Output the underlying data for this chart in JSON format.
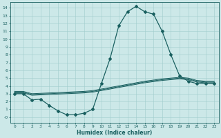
{
  "xlabel": "Humidex (Indice chaleur)",
  "bg_color": "#cce8e8",
  "line_color": "#1a6060",
  "grid_color": "#a0cccc",
  "xlim": [
    -0.5,
    23.5
  ],
  "ylim": [
    -0.7,
    14.7
  ],
  "xticks": [
    0,
    1,
    2,
    3,
    4,
    5,
    6,
    7,
    8,
    9,
    10,
    11,
    12,
    13,
    14,
    15,
    16,
    17,
    18,
    19,
    20,
    21,
    22,
    23
  ],
  "yticks": [
    14,
    13,
    12,
    11,
    10,
    9,
    8,
    7,
    6,
    5,
    4,
    3,
    2,
    1,
    0
  ],
  "ytick_labels": [
    "14",
    "13",
    "12",
    "11",
    "10",
    "9",
    "8",
    "7",
    "6",
    "5",
    "4",
    "3",
    "2",
    "1",
    "-0"
  ],
  "main_x": [
    0,
    1,
    2,
    3,
    4,
    5,
    6,
    7,
    8,
    9,
    10,
    11,
    12,
    13,
    14,
    15,
    16,
    17,
    18,
    19,
    20,
    21,
    22,
    23
  ],
  "main_y": [
    3.0,
    3.0,
    2.2,
    2.3,
    1.5,
    0.8,
    0.3,
    0.3,
    0.5,
    1.0,
    4.3,
    7.5,
    11.7,
    13.5,
    14.2,
    13.5,
    13.2,
    11.0,
    8.0,
    5.3,
    4.6,
    4.3,
    4.3,
    4.3
  ],
  "flat1_x": [
    0,
    1,
    2,
    3,
    4,
    5,
    6,
    7,
    8,
    9,
    10,
    11,
    12,
    13,
    14,
    15,
    16,
    17,
    18,
    19,
    20,
    21,
    22,
    23
  ],
  "flat1_y": [
    3.1,
    3.1,
    2.8,
    2.85,
    2.9,
    2.95,
    3.0,
    3.05,
    3.1,
    3.2,
    3.4,
    3.6,
    3.8,
    4.0,
    4.2,
    4.4,
    4.55,
    4.7,
    4.8,
    4.9,
    4.8,
    4.5,
    4.4,
    4.4
  ],
  "flat2_x": [
    0,
    1,
    2,
    3,
    4,
    5,
    6,
    7,
    8,
    9,
    10,
    11,
    12,
    13,
    14,
    15,
    16,
    17,
    18,
    19,
    20,
    21,
    22,
    23
  ],
  "flat2_y": [
    3.2,
    3.2,
    2.9,
    2.95,
    3.0,
    3.05,
    3.1,
    3.15,
    3.2,
    3.3,
    3.5,
    3.7,
    3.9,
    4.1,
    4.3,
    4.5,
    4.65,
    4.8,
    4.9,
    5.0,
    4.9,
    4.6,
    4.5,
    4.5
  ],
  "flat3_x": [
    0,
    1,
    2,
    3,
    4,
    5,
    6,
    7,
    8,
    9,
    10,
    11,
    12,
    13,
    14,
    15,
    16,
    17,
    18,
    19,
    20,
    21,
    22,
    23
  ],
  "flat3_y": [
    3.3,
    3.3,
    3.0,
    3.05,
    3.1,
    3.15,
    3.2,
    3.25,
    3.3,
    3.4,
    3.6,
    3.8,
    4.0,
    4.2,
    4.4,
    4.6,
    4.75,
    4.9,
    5.0,
    5.1,
    5.0,
    4.7,
    4.6,
    4.6
  ]
}
